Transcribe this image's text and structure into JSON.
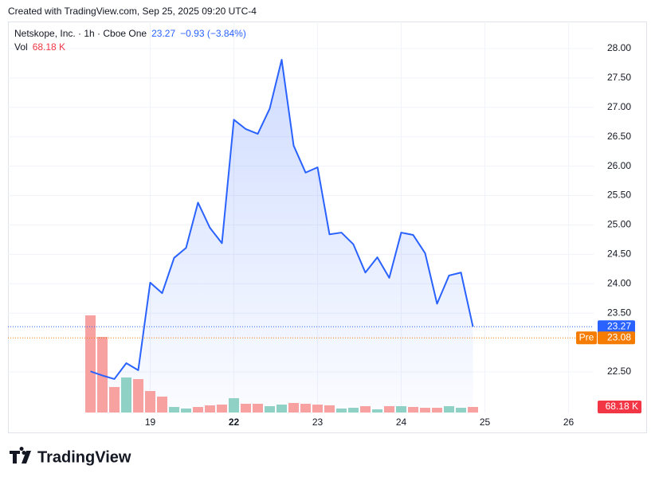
{
  "chart_data": {
    "type": "line",
    "attribution": "Created with TradingView.com, Sep 25, 2025 09:20 UTC-4",
    "brand": "TradingView",
    "title": "Netskope, Inc. · 1h · Cboe One",
    "change": "−0.93 (−3.84%)",
    "volume_legend": "Vol",
    "x": [
      0,
      1,
      2,
      3,
      4,
      5,
      6,
      7,
      8,
      9,
      10,
      11,
      12,
      13,
      14,
      15,
      16,
      17,
      18,
      19,
      20,
      21,
      22,
      23,
      24,
      25,
      26,
      27,
      28,
      29,
      30,
      31,
      32
    ],
    "xlim": [
      -6.9,
      42.1
    ],
    "xticks": [
      {
        "value": 5,
        "label": "19"
      },
      {
        "value": 12,
        "label": "22",
        "bold": true
      },
      {
        "value": 19,
        "label": "23"
      },
      {
        "value": 26,
        "label": "24"
      },
      {
        "value": 33,
        "label": "25"
      },
      {
        "value": 40,
        "label": "26"
      }
    ],
    "ylim": [
      21.81,
      28.46
    ],
    "yticks": [
      {
        "value": 22.5,
        "label": "22.50"
      },
      {
        "value": 23.5,
        "label": "23.50"
      },
      {
        "value": 24,
        "label": "24.00"
      },
      {
        "value": 24.5,
        "label": "24.50"
      },
      {
        "value": 25,
        "label": "25.00"
      },
      {
        "value": 25.5,
        "label": "25.50"
      },
      {
        "value": 26,
        "label": "26.00"
      },
      {
        "value": 26.5,
        "label": "26.50"
      },
      {
        "value": 27,
        "label": "27.00"
      },
      {
        "value": 27.5,
        "label": "27.50"
      },
      {
        "value": 28,
        "label": "28.00"
      }
    ],
    "grid": true,
    "series": [
      {
        "name": "Price",
        "color": "#2962ff",
        "values": [
          22.51,
          22.44,
          22.38,
          22.65,
          22.53,
          24.02,
          23.84,
          24.44,
          24.61,
          25.38,
          24.95,
          24.69,
          26.79,
          26.63,
          26.55,
          26.98,
          27.81,
          26.35,
          25.89,
          25.98,
          24.84,
          24.87,
          24.67,
          24.19,
          24.45,
          24.1,
          24.87,
          24.83,
          24.52,
          23.66,
          24.14,
          24.19,
          23.27
        ]
      },
      {
        "name": "Vol",
        "color": "#f23645",
        "axis": "volume",
        "values": [
          1188000,
          925000,
          312000,
          429000,
          409000,
          263000,
          195000,
          68000,
          49000,
          68000,
          88000,
          97000,
          175000,
          107000,
          107000,
          78000,
          97000,
          117000,
          107000,
          97000,
          88000,
          49000,
          58000,
          78000,
          39000,
          78000,
          78000,
          68000,
          58000,
          58000,
          78000,
          58000,
          68180
        ],
        "value_labels": [
          null,
          null,
          null,
          null,
          null,
          null,
          null,
          null,
          null,
          null,
          null,
          null,
          null,
          null,
          null,
          null,
          null,
          null,
          null,
          null,
          null,
          null,
          null,
          null,
          null,
          null,
          null,
          null,
          null,
          null,
          null,
          null,
          "68.18 K"
        ],
        "bar_colors": [
          "#f7a1a1",
          "#f7a1a1",
          "#f7a1a1",
          "#8fd1c5",
          "#f7a1a1",
          "#f7a1a1",
          "#f7a1a1",
          "#8fd1c5",
          "#8fd1c5",
          "#f7a1a1",
          "#f7a1a1",
          "#f7a1a1",
          "#8fd1c5",
          "#f7a1a1",
          "#f7a1a1",
          "#8fd1c5",
          "#8fd1c5",
          "#f7a1a1",
          "#f7a1a1",
          "#f7a1a1",
          "#f7a1a1",
          "#8fd1c5",
          "#8fd1c5",
          "#f7a1a1",
          "#8fd1c5",
          "#f7a1a1",
          "#8fd1c5",
          "#f7a1a1",
          "#f7a1a1",
          "#f7a1a1",
          "#8fd1c5",
          "#8fd1c5",
          "#f7a1a1"
        ]
      }
    ],
    "volume_ylim": [
      0,
      1266000
    ],
    "pre_market": {
      "label": "Pre",
      "value": 23.08,
      "color": "#f57c00"
    }
  }
}
